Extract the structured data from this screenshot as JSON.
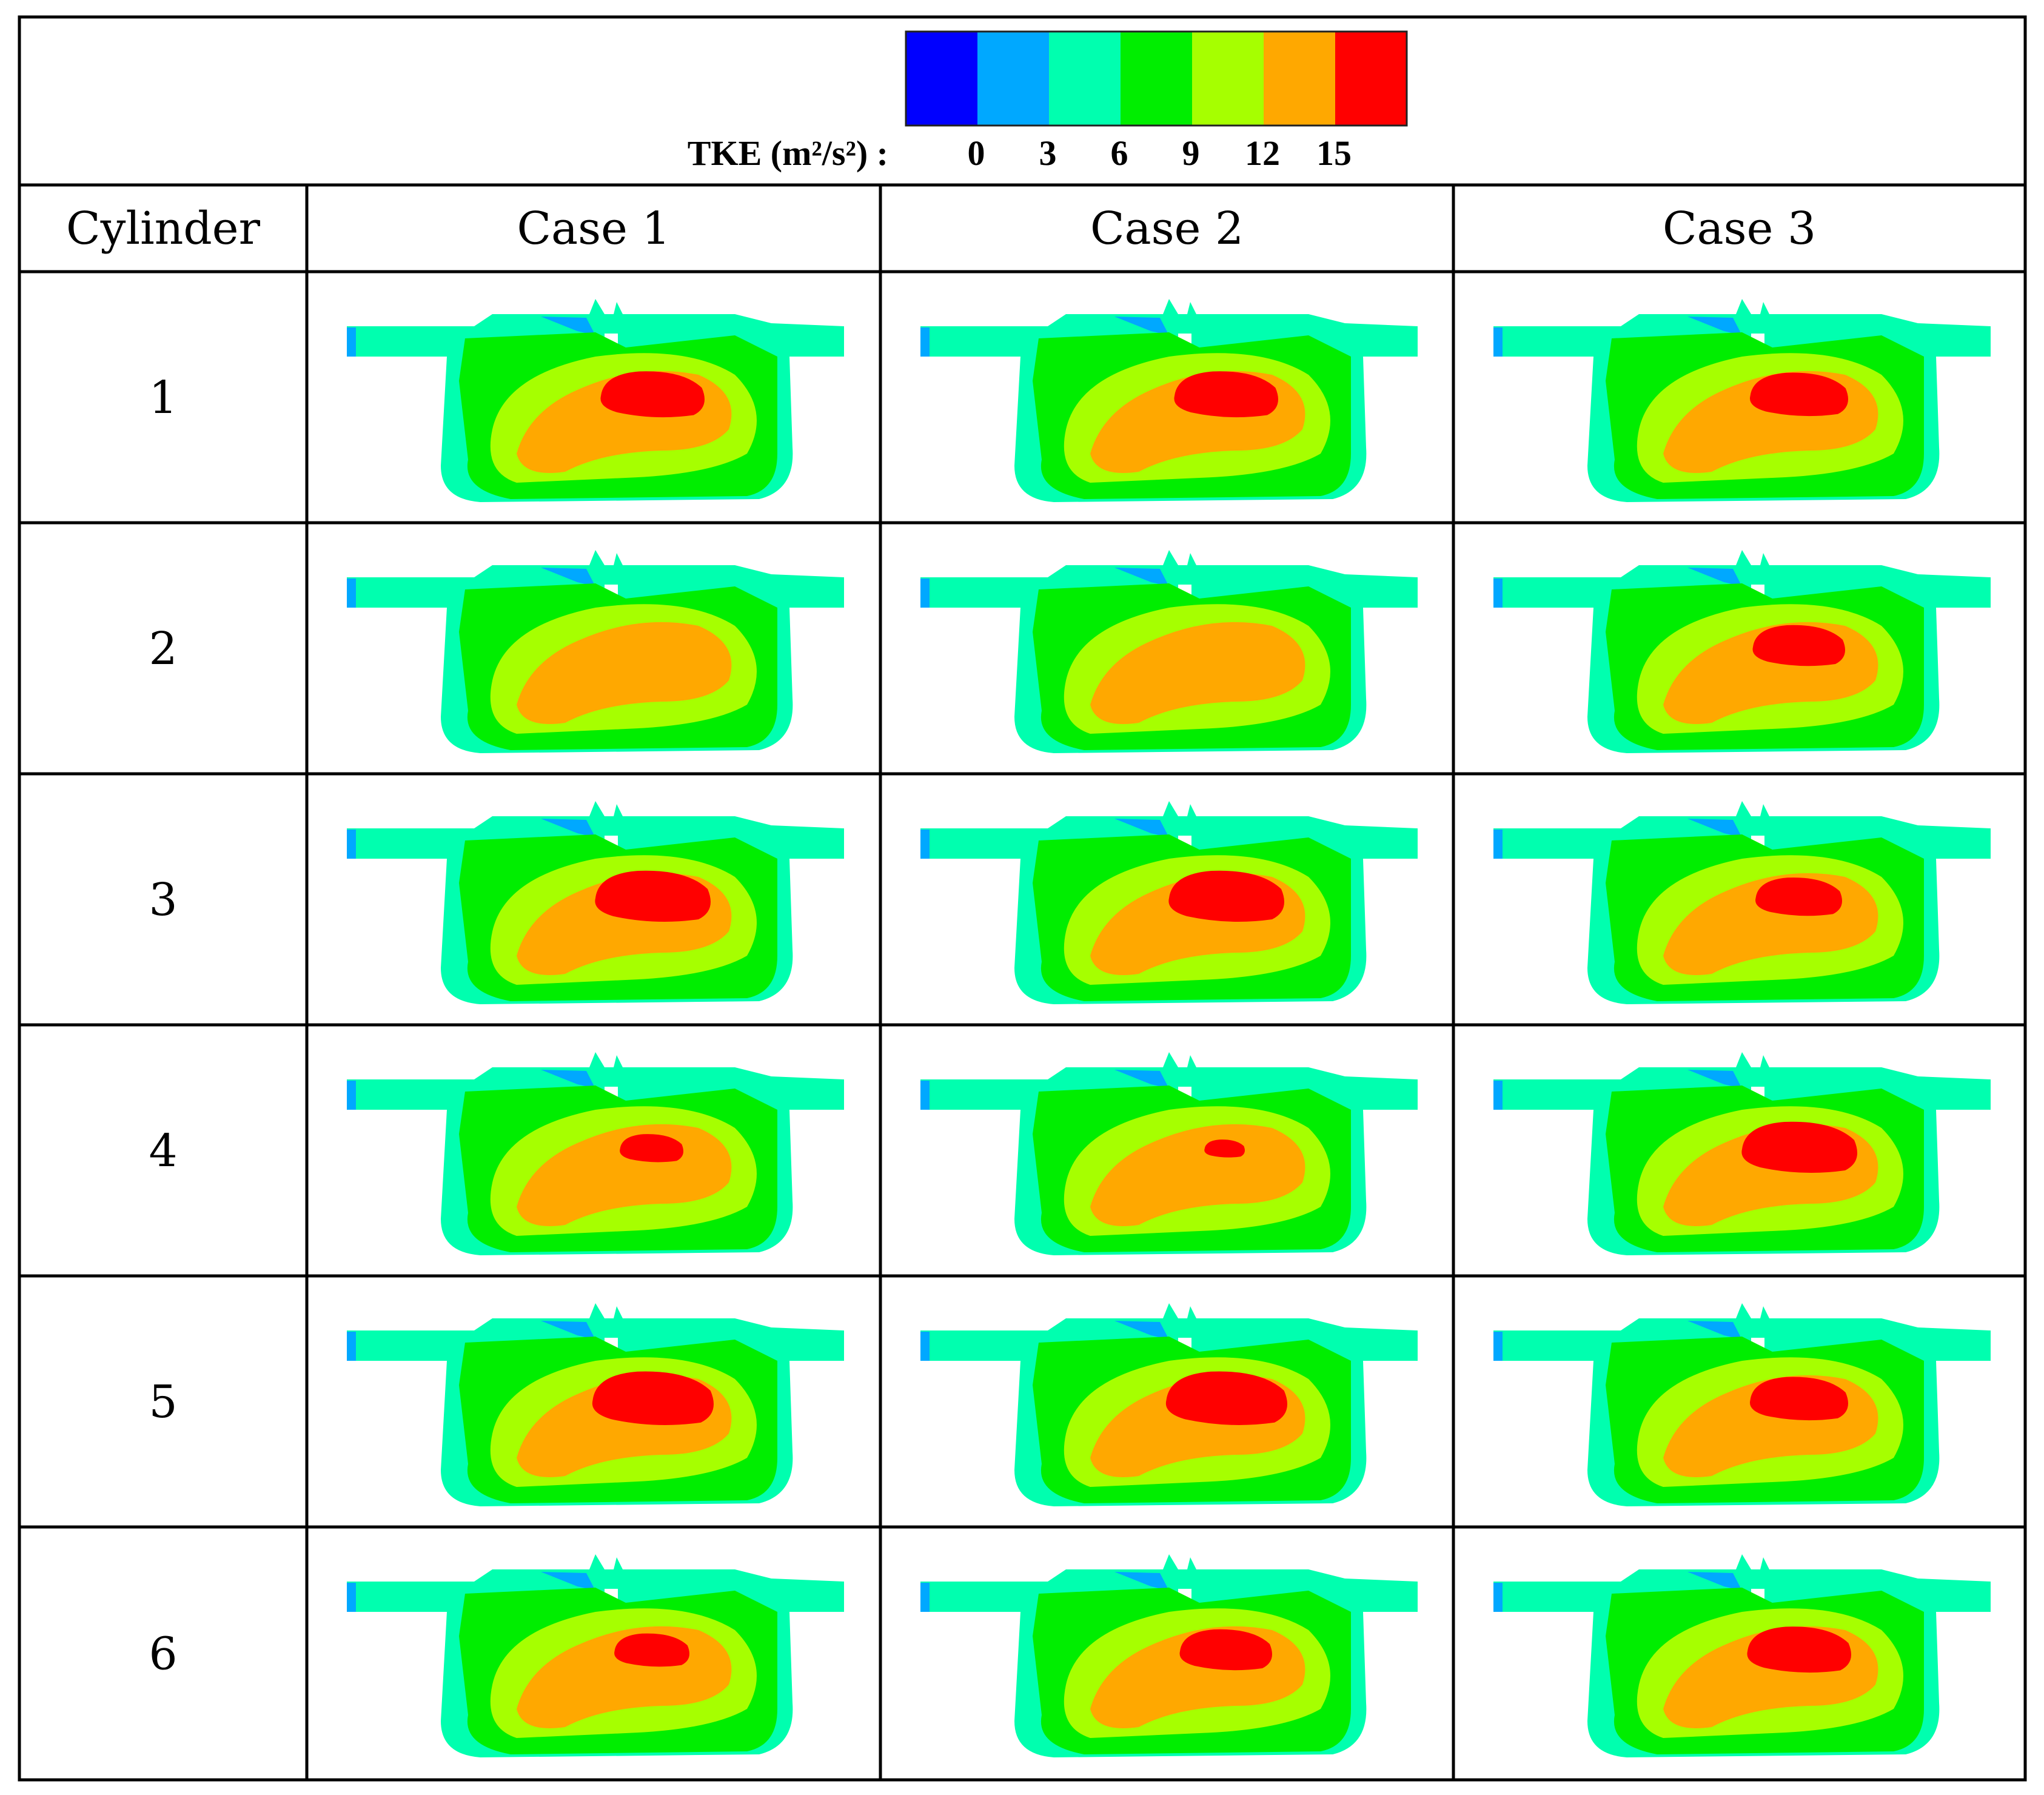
{
  "legend": {
    "label": "TKE (m²/s²) :",
    "ticks": [
      "0",
      "3",
      "6",
      "9",
      "12",
      "15"
    ],
    "colors": [
      "#0000ff",
      "#00a8ff",
      "#00ffaf",
      "#00ee00",
      "#a6ff00",
      "#ffa800",
      "#ff0000"
    ]
  },
  "table": {
    "header": [
      "Cylinder",
      "Case 1",
      "Case 2",
      "Case 3"
    ],
    "cylinders": [
      "1",
      "2",
      "3",
      "4",
      "5",
      "6"
    ]
  },
  "contours": [
    [
      {
        "hot_level": 6,
        "hot_scale": 0.9
      },
      {
        "hot_level": 6,
        "hot_scale": 0.9
      },
      {
        "hot_level": 6,
        "hot_scale": 0.85
      }
    ],
    [
      {
        "hot_level": 5,
        "hot_scale": 0
      },
      {
        "hot_level": 5,
        "hot_scale": 0
      },
      {
        "hot_level": 6,
        "hot_scale": 0.8
      }
    ],
    [
      {
        "hot_level": 6,
        "hot_scale": 1.0
      },
      {
        "hot_level": 6,
        "hot_scale": 1.0
      },
      {
        "hot_level": 6,
        "hot_scale": 0.75
      }
    ],
    [
      {
        "hot_level": 6,
        "hot_scale": 0.55
      },
      {
        "hot_level": 6,
        "hot_scale": 0.35
      },
      {
        "hot_level": 6,
        "hot_scale": 1.0
      }
    ],
    [
      {
        "hot_level": 6,
        "hot_scale": 1.05
      },
      {
        "hot_level": 6,
        "hot_scale": 1.05
      },
      {
        "hot_level": 6,
        "hot_scale": 0.85
      }
    ],
    [
      {
        "hot_level": 6,
        "hot_scale": 0.65
      },
      {
        "hot_level": 6,
        "hot_scale": 0.8
      },
      {
        "hot_level": 6,
        "hot_scale": 0.9
      }
    ]
  ]
}
